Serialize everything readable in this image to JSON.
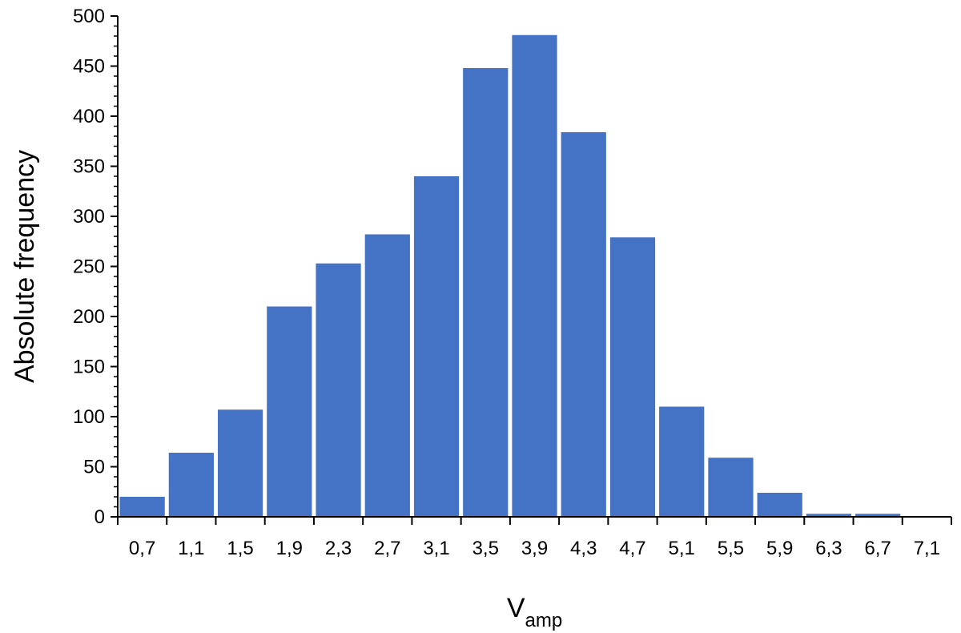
{
  "chart_data": {
    "type": "bar",
    "title": "",
    "xlabel": "V",
    "xlabel_subscript": "amp",
    "ylabel": "Absolute frequency",
    "categories": [
      "0,7",
      "1,1",
      "1,5",
      "1,9",
      "2,3",
      "2,7",
      "3,1",
      "3,5",
      "3,9",
      "4,3",
      "4,7",
      "5,1",
      "5,5",
      "5,9",
      "6,3",
      "6,7",
      "7,1"
    ],
    "values": [
      20,
      64,
      107,
      210,
      253,
      282,
      340,
      448,
      481,
      384,
      279,
      110,
      59,
      24,
      3,
      3,
      0
    ],
    "ylim": [
      0,
      500
    ],
    "yticks": [
      0,
      50,
      100,
      150,
      200,
      250,
      300,
      350,
      400,
      450,
      500
    ],
    "bar_color": "#4472c4",
    "grid": false,
    "legend": "none"
  }
}
